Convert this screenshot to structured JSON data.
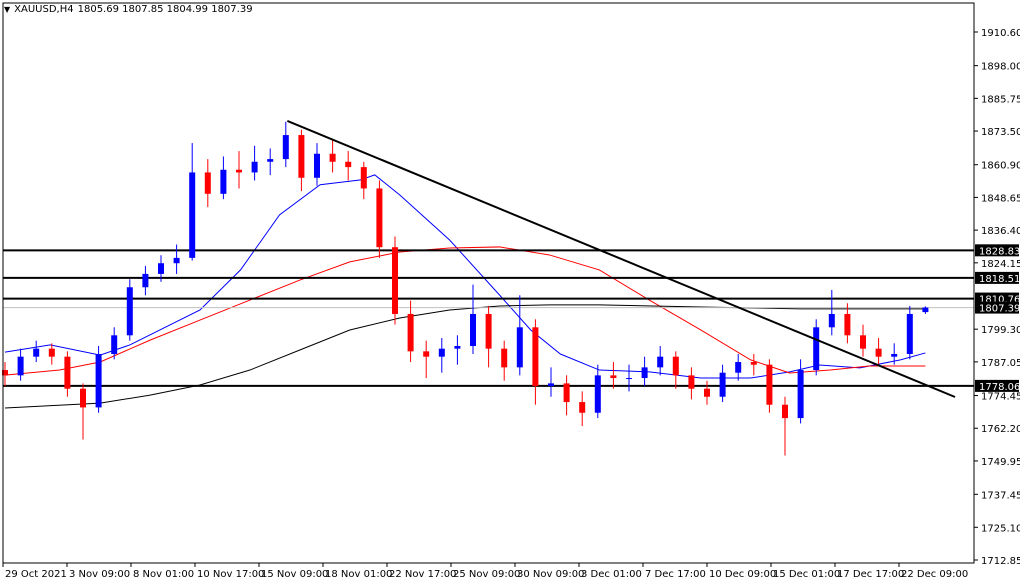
{
  "header": {
    "dropdown_icon": "triangle-down-icon",
    "symbol": "XAUUSD,H4",
    "ohlc": "1805.69 1807.85 1804.99 1807.39"
  },
  "colors": {
    "up": "#0000ff",
    "down": "#ff0000",
    "ma_fast": "#0000ff",
    "ma_mid": "#ff0000",
    "ma_slow": "#000000",
    "level_line": "#000000",
    "bid_line": "#c0c0c0",
    "trendline": "#000000"
  },
  "chart_data": {
    "type": "candlestick",
    "symbol": "XAUUSD",
    "timeframe": "H4",
    "ylim": [
      1712.85,
      1910.6
    ],
    "y_ticks": [
      "1910.60",
      "1898.00",
      "1885.75",
      "1873.50",
      "1860.90",
      "1848.65",
      "1836.40",
      "1824.15",
      "1799.30",
      "1787.05",
      "1774.45",
      "1762.20",
      "1749.95",
      "1737.45",
      "1725.10",
      "1712.85"
    ],
    "x_ticks": [
      "29 Oct 2021",
      "3 Nov 09:00",
      "8 Nov 01:00",
      "10 Nov 17:00",
      "15 Nov 09:00",
      "18 Nov 01:00",
      "22 Nov 17:00",
      "25 Nov 09:00",
      "30 Nov 09:00",
      "3 Dec 01:00",
      "7 Dec 17:00",
      "10 Dec 09:00",
      "15 Dec 01:00",
      "17 Dec 17:00",
      "22 Dec 09:00"
    ],
    "candles_ohlc": [
      [
        1784,
        1787,
        1778,
        1782
      ],
      [
        1782,
        1792,
        1780,
        1789
      ],
      [
        1789,
        1795,
        1787,
        1792
      ],
      [
        1792,
        1794,
        1786,
        1789
      ],
      [
        1789,
        1791,
        1774,
        1777
      ],
      [
        1777,
        1779,
        1758,
        1770
      ],
      [
        1770,
        1793,
        1768,
        1790
      ],
      [
        1790,
        1800,
        1788,
        1797
      ],
      [
        1797,
        1818,
        1795,
        1815
      ],
      [
        1815,
        1823,
        1812,
        1820
      ],
      [
        1820,
        1827,
        1817,
        1824
      ],
      [
        1824,
        1831,
        1820,
        1826
      ],
      [
        1826,
        1869,
        1825,
        1858
      ],
      [
        1858,
        1863,
        1845,
        1850
      ],
      [
        1850,
        1864,
        1848,
        1859
      ],
      [
        1859,
        1866,
        1852,
        1858
      ],
      [
        1858,
        1868,
        1855,
        1862
      ],
      [
        1862,
        1867,
        1857,
        1863
      ],
      [
        1863,
        1877,
        1860,
        1872
      ],
      [
        1872,
        1874,
        1851,
        1856
      ],
      [
        1856,
        1869,
        1853,
        1865
      ],
      [
        1865,
        1870,
        1858,
        1862
      ],
      [
        1862,
        1866,
        1855,
        1860
      ],
      [
        1860,
        1862,
        1848,
        1852
      ],
      [
        1852,
        1855,
        1826,
        1830
      ],
      [
        1830,
        1834,
        1801,
        1805
      ],
      [
        1805,
        1810,
        1787,
        1791
      ],
      [
        1791,
        1795,
        1781,
        1789
      ],
      [
        1789,
        1796,
        1783,
        1792
      ],
      [
        1792,
        1797,
        1786,
        1793
      ],
      [
        1793,
        1816,
        1790,
        1805
      ],
      [
        1805,
        1808,
        1785,
        1792
      ],
      [
        1792,
        1795,
        1780,
        1785
      ],
      [
        1785,
        1812,
        1782,
        1800
      ],
      [
        1800,
        1803,
        1771,
        1778
      ],
      [
        1778,
        1785,
        1774,
        1779
      ],
      [
        1779,
        1782,
        1767,
        1772
      ],
      [
        1772,
        1776,
        1763,
        1768
      ],
      [
        1768,
        1786,
        1766,
        1782
      ],
      [
        1782,
        1787,
        1777,
        1781
      ],
      [
        1781,
        1786,
        1776,
        1781
      ],
      [
        1781,
        1789,
        1778,
        1785
      ],
      [
        1785,
        1793,
        1782,
        1789
      ],
      [
        1789,
        1791,
        1777,
        1782
      ],
      [
        1782,
        1785,
        1773,
        1777
      ],
      [
        1777,
        1780,
        1771,
        1774
      ],
      [
        1774,
        1786,
        1772,
        1783
      ],
      [
        1783,
        1790,
        1780,
        1787
      ],
      [
        1787,
        1790,
        1782,
        1786
      ],
      [
        1786,
        1788,
        1768,
        1771
      ],
      [
        1771,
        1774,
        1752,
        1766
      ],
      [
        1766,
        1788,
        1764,
        1784
      ],
      [
        1784,
        1803,
        1782,
        1800
      ],
      [
        1800,
        1814,
        1797,
        1805
      ],
      [
        1805,
        1809,
        1794,
        1797
      ],
      [
        1797,
        1801,
        1789,
        1792
      ],
      [
        1792,
        1796,
        1786,
        1789
      ],
      [
        1789,
        1794,
        1786,
        1790
      ],
      [
        1790,
        1808,
        1788,
        1805
      ],
      [
        1805.69,
        1807.85,
        1804.99,
        1807.39
      ]
    ],
    "moving_averages": [
      {
        "color": "#0000ff",
        "points": [
          [
            0,
            1790.7
          ],
          [
            2.9,
            1793.4
          ],
          [
            6.1,
            1789.6
          ],
          [
            8,
            1793.4
          ],
          [
            12.5,
            1806.5
          ],
          [
            15.1,
            1821.5
          ],
          [
            17.6,
            1842.1
          ],
          [
            20.2,
            1853.4
          ],
          [
            22.8,
            1855.2
          ],
          [
            23.7,
            1857.1
          ],
          [
            25.3,
            1849.6
          ],
          [
            28.5,
            1832.7
          ],
          [
            31.7,
            1812.1
          ],
          [
            33.7,
            1799.0
          ],
          [
            35.6,
            1790
          ],
          [
            38.1,
            1784.0
          ],
          [
            41.3,
            1783.3
          ],
          [
            44.6,
            1781.0
          ],
          [
            47.8,
            1781.0
          ],
          [
            50.3,
            1783.3
          ],
          [
            52.2,
            1785.9
          ],
          [
            54.8,
            1784.8
          ],
          [
            57.4,
            1787.8
          ],
          [
            59,
            1790.4
          ]
        ]
      },
      {
        "color": "#ff0000",
        "points": [
          [
            0,
            1782.1
          ],
          [
            3.5,
            1784.0
          ],
          [
            6.1,
            1787.0
          ],
          [
            9.3,
            1795.2
          ],
          [
            12.5,
            1802.7
          ],
          [
            15.7,
            1810.2
          ],
          [
            18.9,
            1817.7
          ],
          [
            22.1,
            1824.5
          ],
          [
            25.3,
            1828.2
          ],
          [
            28.5,
            1829.7
          ],
          [
            31.7,
            1830.1
          ],
          [
            34.9,
            1827.1
          ],
          [
            38.1,
            1821.5
          ],
          [
            41.3,
            1810.2
          ],
          [
            44.6,
            1799.0
          ],
          [
            47.8,
            1787.8
          ],
          [
            50.3,
            1782.9
          ],
          [
            52.9,
            1784.0
          ],
          [
            55.4,
            1785.5
          ],
          [
            59,
            1785.5
          ]
        ]
      },
      {
        "color": "#000000",
        "points": [
          [
            0,
            1769.8
          ],
          [
            6.1,
            1771.6
          ],
          [
            9.3,
            1774.6
          ],
          [
            12.5,
            1778.4
          ],
          [
            15.7,
            1784.0
          ],
          [
            18.9,
            1791.5
          ],
          [
            22.1,
            1799.0
          ],
          [
            25.3,
            1803.5
          ],
          [
            28.5,
            1806.5
          ],
          [
            31.7,
            1808.0
          ],
          [
            34.9,
            1808.4
          ],
          [
            38.1,
            1808.4
          ],
          [
            44.6,
            1807.6
          ],
          [
            51,
            1806.9
          ],
          [
            54.2,
            1806.9
          ],
          [
            59,
            1806.9
          ]
        ]
      }
    ],
    "horizontal_levels": [
      "1828.83",
      "1818.51",
      "1810.76",
      "1778.06"
    ],
    "bid_price": "1807.39",
    "trendline": {
      "from": [
        18.1,
        1877.3
      ],
      "to": [
        60.9,
        1773.9
      ]
    }
  }
}
